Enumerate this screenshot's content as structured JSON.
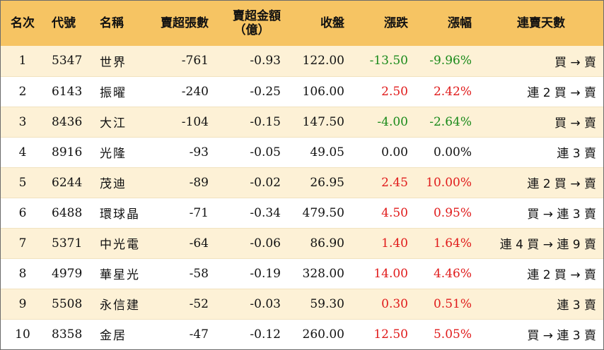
{
  "colors": {
    "header_bg": "#f6c463",
    "row_alt_bg": "#fdf1d6",
    "up": "#e01b1b",
    "down": "#1a8a1a"
  },
  "headers": {
    "rank": "名次",
    "code": "代號",
    "name": "名稱",
    "net_shares": "賣超張數",
    "net_amount_line1": "賣超金額",
    "net_amount_line2": "（億）",
    "close": "收盤",
    "change": "漲跌",
    "pct": "漲幅",
    "streak": "連賣天數"
  },
  "rows": [
    {
      "rank": "1",
      "code": "5347",
      "name": "世界",
      "net_shares": "-761",
      "net_amount": "-0.93",
      "close": "122.00",
      "change": "-13.50",
      "pct": "-9.96%",
      "trend": "down",
      "streak": "買 → 賣"
    },
    {
      "rank": "2",
      "code": "6143",
      "name": "振曜",
      "net_shares": "-240",
      "net_amount": "-0.25",
      "close": "106.00",
      "change": "2.50",
      "pct": "2.42%",
      "trend": "up",
      "streak": "連 2 買 → 賣"
    },
    {
      "rank": "3",
      "code": "8436",
      "name": "大江",
      "net_shares": "-104",
      "net_amount": "-0.15",
      "close": "147.50",
      "change": "-4.00",
      "pct": "-2.64%",
      "trend": "down",
      "streak": "買 → 賣"
    },
    {
      "rank": "4",
      "code": "8916",
      "name": "光隆",
      "net_shares": "-93",
      "net_amount": "-0.05",
      "close": "49.05",
      "change": "0.00",
      "pct": "0.00%",
      "trend": "flat",
      "streak": "連 3 賣"
    },
    {
      "rank": "5",
      "code": "6244",
      "name": "茂迪",
      "net_shares": "-89",
      "net_amount": "-0.02",
      "close": "26.95",
      "change": "2.45",
      "pct": "10.00%",
      "trend": "up",
      "streak": "連 2 買 → 賣"
    },
    {
      "rank": "6",
      "code": "6488",
      "name": "環球晶",
      "net_shares": "-71",
      "net_amount": "-0.34",
      "close": "479.50",
      "change": "4.50",
      "pct": "0.95%",
      "trend": "up",
      "streak": "買 → 連 3 賣"
    },
    {
      "rank": "7",
      "code": "5371",
      "name": "中光電",
      "net_shares": "-64",
      "net_amount": "-0.06",
      "close": "86.90",
      "change": "1.40",
      "pct": "1.64%",
      "trend": "up",
      "streak": "連 4 買 → 連 9 賣"
    },
    {
      "rank": "8",
      "code": "4979",
      "name": "華星光",
      "net_shares": "-58",
      "net_amount": "-0.19",
      "close": "328.00",
      "change": "14.00",
      "pct": "4.46%",
      "trend": "up",
      "streak": "連 2 買 → 賣"
    },
    {
      "rank": "9",
      "code": "5508",
      "name": "永信建",
      "net_shares": "-52",
      "net_amount": "-0.03",
      "close": "59.30",
      "change": "0.30",
      "pct": "0.51%",
      "trend": "up",
      "streak": "連 3 賣"
    },
    {
      "rank": "10",
      "code": "8358",
      "name": "金居",
      "net_shares": "-47",
      "net_amount": "-0.12",
      "close": "260.00",
      "change": "12.50",
      "pct": "5.05%",
      "trend": "up",
      "streak": "買 → 連 3 賣"
    }
  ]
}
